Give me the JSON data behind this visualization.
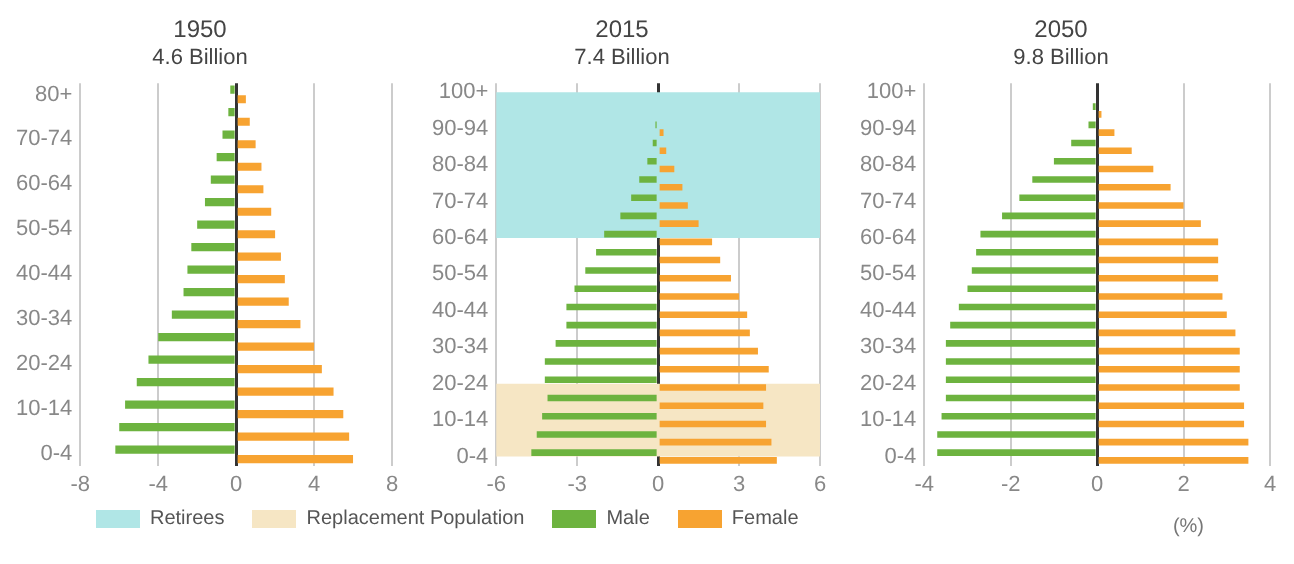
{
  "chart_data": [
    {
      "type": "bar",
      "orientation": "horizontal",
      "title": "1950",
      "subtitle": "4.6 Billion",
      "categories": [
        "80+",
        null,
        "70-74",
        null,
        "60-64",
        null,
        "50-54",
        null,
        "40-44",
        null,
        "30-34",
        null,
        "20-24",
        null,
        "10-14",
        null,
        "0-4"
      ],
      "series": [
        {
          "color": "#6db33f",
          "values": [
            -0.3,
            -0.4,
            -0.7,
            -1.0,
            -1.3,
            -1.6,
            -2.0,
            -2.3,
            -2.5,
            -2.7,
            -3.3,
            -4.0,
            -4.5,
            -5.1,
            -5.7,
            -6.0,
            -6.2
          ]
        },
        {
          "color": "#f7a331",
          "values": [
            0.5,
            0.7,
            1.0,
            1.3,
            1.4,
            1.8,
            2.0,
            2.3,
            2.5,
            2.7,
            3.3,
            4.0,
            4.4,
            5.0,
            5.5,
            5.8,
            6.0
          ]
        }
      ],
      "xlim": [
        -8,
        8
      ],
      "xticks": [
        -8,
        -4,
        0,
        4,
        8
      ],
      "grid": "x",
      "legend": false
    },
    {
      "type": "bar",
      "orientation": "horizontal",
      "title": "2015",
      "subtitle": "7.4 Billion",
      "categories": [
        "100+",
        null,
        "90-94",
        null,
        "80-84",
        null,
        "70-74",
        null,
        "60-64",
        null,
        "50-54",
        null,
        "40-44",
        null,
        "30-34",
        null,
        "20-24",
        null,
        "10-14",
        null,
        "0-4"
      ],
      "series": [
        {
          "name": "Male",
          "color": "#6db33f",
          "values": [
            0,
            null,
            -0.1,
            -0.2,
            -0.4,
            -0.7,
            -1.0,
            -1.4,
            -2.0,
            -2.3,
            -2.7,
            -3.1,
            -3.4,
            -3.4,
            -3.8,
            -4.2,
            -4.2,
            -4.1,
            -4.3,
            -4.5,
            -4.7
          ]
        },
        {
          "name": "Female",
          "color": "#f7a331",
          "values": [
            0,
            null,
            0.2,
            0.3,
            0.6,
            0.9,
            1.1,
            1.5,
            2.0,
            2.3,
            2.7,
            3.0,
            3.3,
            3.4,
            3.7,
            4.1,
            4.0,
            3.9,
            4.0,
            4.2,
            4.4
          ]
        }
      ],
      "bands": [
        {
          "axis": "y",
          "from": "60-64",
          "to": "100+",
          "label": "Retirees",
          "color": "#b0e6e6"
        },
        {
          "axis": "y",
          "from": "0-4",
          "to": "20-24",
          "label": "Replacement Population",
          "color": "#f6e6c4"
        }
      ],
      "xlim": [
        -6,
        6
      ],
      "xticks": [
        -6,
        -3,
        0,
        3,
        6
      ],
      "grid": "x",
      "legend": "bottom"
    },
    {
      "type": "bar",
      "orientation": "horizontal",
      "title": "2050",
      "subtitle": "9.8 Billion",
      "categories": [
        "100+",
        null,
        "90-94",
        null,
        "80-84",
        null,
        "70-74",
        null,
        "60-64",
        null,
        "50-54",
        null,
        "40-44",
        null,
        "30-34",
        null,
        "20-24",
        null,
        "10-14",
        null,
        "0-4"
      ],
      "series": [
        {
          "color": "#6db33f",
          "values": [
            0,
            -0.1,
            -0.2,
            -0.6,
            -1.0,
            -1.5,
            -1.8,
            -2.2,
            -2.7,
            -2.8,
            -2.9,
            -3.0,
            -3.2,
            -3.4,
            -3.5,
            -3.5,
            -3.5,
            -3.5,
            -3.6,
            -3.7,
            -3.7
          ]
        },
        {
          "color": "#f7a331",
          "values": [
            0,
            0.1,
            0.4,
            0.8,
            1.3,
            1.7,
            2.0,
            2.4,
            2.8,
            2.8,
            2.8,
            2.9,
            3.0,
            3.2,
            3.3,
            3.3,
            3.3,
            3.4,
            3.4,
            3.5,
            3.5
          ]
        }
      ],
      "xlim": [
        -4,
        4
      ],
      "xticks": [
        -4,
        -2,
        0,
        2,
        4
      ],
      "grid": "x",
      "legend": false,
      "annotations": [
        "(%)"
      ]
    }
  ]
}
